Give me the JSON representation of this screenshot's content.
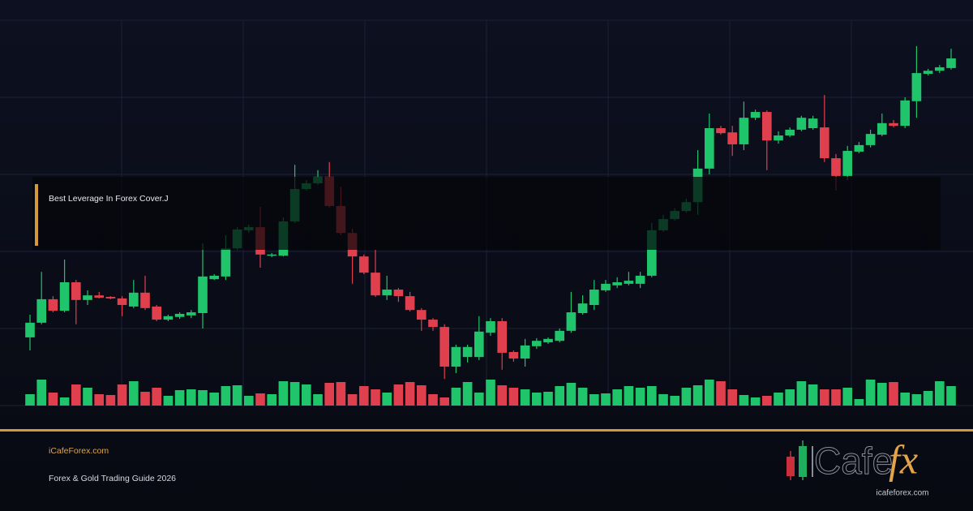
{
  "chart_data": {
    "type": "candlestick",
    "up_color": "#1fc46b",
    "down_color": "#e0404d",
    "ylim": [
      0,
      100
    ],
    "volume_lim": [
      0,
      40
    ],
    "open": [
      17.7,
      21.5,
      27.6,
      24.6,
      32,
      27.4,
      28.6,
      28.2,
      27.8,
      25.7,
      29.3,
      25.7,
      22.3,
      23,
      23.4,
      24,
      32.8,
      33.5,
      40.8,
      45.5,
      46.3,
      38.9,
      38.9,
      47.8,
      56.2,
      57.7,
      59.4,
      51.8,
      44.8,
      38.7,
      34.5,
      28.6,
      30.1,
      28.4,
      24.8,
      22.3,
      20.4,
      10.1,
      12.6,
      12.6,
      18.9,
      21.9,
      13.9,
      12.2,
      15.4,
      16.4,
      16.8,
      19.4,
      24,
      26.1,
      29.9,
      31.2,
      31.6,
      31.6,
      33.7,
      45.5,
      48.4,
      50.5,
      52.8,
      61.5,
      72,
      70.9,
      67.8,
      74.7,
      76.2,
      68.8,
      70.1,
      71.6,
      72,
      72.2,
      64.2,
      59.6,
      65.9,
      67.6,
      70.3,
      73.3,
      72.6,
      79,
      86.1,
      86.9,
      87.6
    ],
    "close": [
      21.5,
      27.6,
      24.6,
      32,
      27.4,
      28.6,
      28,
      27.8,
      26.1,
      29.3,
      25.3,
      22.3,
      23.2,
      23.8,
      24.2,
      33.5,
      33.7,
      40.8,
      45.7,
      46.3,
      39.2,
      39.2,
      47.8,
      56.2,
      57.7,
      59.4,
      51.8,
      44.8,
      38.7,
      34.5,
      28.6,
      30.1,
      28.4,
      24.8,
      22.3,
      20.4,
      10.1,
      15.2,
      15.2,
      19.2,
      21.9,
      13.7,
      12.2,
      15.6,
      16.8,
      17.3,
      19.4,
      24.2,
      26.5,
      30.1,
      31.6,
      32,
      32.4,
      33.7,
      45.5,
      48.4,
      50.5,
      52.8,
      61.5,
      72,
      70.7,
      67.8,
      74.7,
      76.2,
      68.8,
      70.1,
      71.6,
      74.7,
      74.5,
      64.2,
      59.6,
      66.1,
      67.6,
      70.5,
      73.3,
      72.6,
      79.2,
      86.3,
      86.9,
      87.8,
      90.1
    ],
    "high": [
      23.6,
      34.7,
      28.4,
      37.9,
      32.6,
      29.9,
      29.5,
      28.4,
      28.4,
      32.6,
      33.7,
      26.1,
      23.6,
      24.2,
      24.8,
      42.1,
      34.1,
      44.2,
      46.3,
      47,
      51.6,
      39.6,
      48.8,
      62.5,
      58.5,
      61.1,
      63.2,
      56.8,
      45.9,
      39.2,
      40.4,
      33.7,
      30.5,
      29.5,
      25.3,
      22.7,
      21.1,
      15.8,
      15.8,
      23.2,
      22.7,
      22.7,
      14.3,
      17.3,
      17.5,
      17.7,
      20,
      29.5,
      28.6,
      32.6,
      32.6,
      33.3,
      34.7,
      34.7,
      47.4,
      49.5,
      51.2,
      53.7,
      66.3,
      75.8,
      72.6,
      72.6,
      78.9,
      76.8,
      76.6,
      71.2,
      72.2,
      75.2,
      75.2,
      80.6,
      65.3,
      67.4,
      68.4,
      71.6,
      75.8,
      74.1,
      80,
      93.3,
      87.4,
      88.4,
      92.6
    ],
    "low": [
      14.3,
      21.1,
      24.2,
      24.2,
      21.1,
      26.1,
      27.8,
      27.6,
      23.2,
      25.3,
      24.8,
      21.9,
      21.9,
      22.5,
      22.7,
      20,
      32.6,
      32.6,
      40.4,
      44.8,
      35.8,
      38.5,
      38.7,
      47.4,
      55.8,
      57.3,
      51.4,
      44.2,
      31.6,
      34.1,
      28.2,
      27.4,
      26.9,
      24.4,
      19.4,
      19.4,
      6.9,
      8.4,
      11.2,
      11.8,
      18.1,
      9.3,
      11.4,
      10.1,
      14.7,
      16,
      16.4,
      18.9,
      23.6,
      24.8,
      29.5,
      30.5,
      31.2,
      30.5,
      33.3,
      45.1,
      48,
      50.1,
      49.5,
      60,
      70.3,
      64.8,
      66.3,
      74.1,
      61.1,
      68,
      69.7,
      71.2,
      71.6,
      63.2,
      55.8,
      58.5,
      65.5,
      67,
      69.9,
      72.2,
      72,
      74.7,
      85.7,
      86.3,
      87.2
    ],
    "volume": [
      14,
      32,
      16,
      10,
      26,
      22,
      14,
      13,
      26,
      30,
      17,
      22,
      12,
      19,
      20,
      19,
      16,
      24,
      25,
      12,
      15,
      14,
      30,
      29,
      26,
      14,
      28,
      29,
      14,
      24,
      20,
      16,
      26,
      29,
      25,
      14,
      10,
      22,
      29,
      16,
      32,
      25,
      22,
      20,
      16,
      17,
      24,
      28,
      22,
      14,
      15,
      20,
      24,
      22,
      24,
      14,
      12,
      22,
      25,
      32,
      30,
      20,
      13,
      10,
      12,
      16,
      20,
      30,
      26,
      20,
      20,
      22,
      8,
      32,
      28,
      29,
      16,
      14,
      18,
      30,
      24
    ]
  },
  "caption": "Best Leverage In Forex Cover.J",
  "footer": {
    "site": "iCafeForex.com",
    "subtitle": "Forex & Gold Trading Guide 2026"
  },
  "logo": {
    "word": "Cafe",
    "accent": "fx",
    "url": "icafeforex.com"
  }
}
